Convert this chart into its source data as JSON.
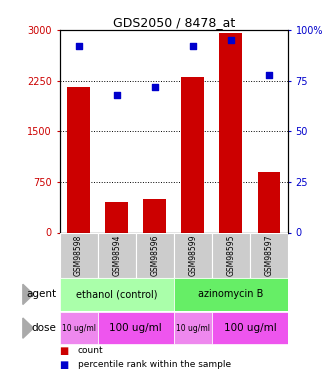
{
  "title": "GDS2050 / 8478_at",
  "samples": [
    "GSM98598",
    "GSM98594",
    "GSM98596",
    "GSM98599",
    "GSM98595",
    "GSM98597"
  ],
  "bar_values": [
    2150,
    450,
    500,
    2300,
    2950,
    900
  ],
  "dot_values": [
    92,
    68,
    72,
    92,
    95,
    78
  ],
  "bar_color": "#cc0000",
  "dot_color": "#0000cc",
  "ylim_left": [
    0,
    3000
  ],
  "ylim_right": [
    0,
    100
  ],
  "yticks_left": [
    0,
    750,
    1500,
    2250,
    3000
  ],
  "ytick_labels_left": [
    "0",
    "750",
    "1500",
    "2250",
    "3000"
  ],
  "yticks_right": [
    0,
    25,
    50,
    75,
    100
  ],
  "ytick_labels_right": [
    "0",
    "25",
    "50",
    "75",
    "100%"
  ],
  "agent_groups": [
    {
      "label": "ethanol (control)",
      "start": 0,
      "end": 3,
      "color": "#aaffaa"
    },
    {
      "label": "azinomycin B",
      "start": 3,
      "end": 6,
      "color": "#66ee66"
    }
  ],
  "dose_groups": [
    {
      "label": "10 ug/ml",
      "start": 0,
      "end": 1,
      "color": "#ee88ee",
      "fontsize": 5.5
    },
    {
      "label": "100 ug/ml",
      "start": 1,
      "end": 3,
      "color": "#ee55ee",
      "fontsize": 7.5
    },
    {
      "label": "10 ug/ml",
      "start": 3,
      "end": 4,
      "color": "#ee88ee",
      "fontsize": 5.5
    },
    {
      "label": "100 ug/ml",
      "start": 4,
      "end": 6,
      "color": "#ee55ee",
      "fontsize": 7.5
    }
  ],
  "legend_items": [
    {
      "color": "#cc0000",
      "label": "count"
    },
    {
      "color": "#0000cc",
      "label": "percentile rank within the sample"
    }
  ],
  "background_color": "#ffffff",
  "plot_bg_color": "#ffffff",
  "sample_box_color": "#cccccc",
  "grid_color": "#000000"
}
